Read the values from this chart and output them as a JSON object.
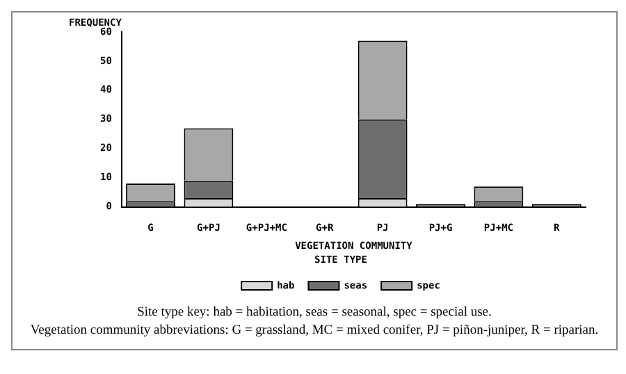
{
  "chart_data": {
    "type": "bar",
    "stacked": true,
    "ylabel": "FREQUENCY",
    "xlabel": "VEGETATION COMMUNITY",
    "legend_title": "SITE TYPE",
    "legend": "bottom",
    "grid": false,
    "categories": [
      "G",
      "G+PJ",
      "G+PJ+MC",
      "G+R",
      "PJ",
      "PJ+G",
      "PJ+MC",
      "R"
    ],
    "series": [
      {
        "name": "hab",
        "color": "#d9d9d9",
        "values": [
          0,
          3,
          0,
          0,
          3,
          0,
          0,
          0
        ]
      },
      {
        "name": "seas",
        "color": "#6e6e6e",
        "values": [
          2,
          6,
          0,
          0,
          27,
          1,
          2,
          1
        ]
      },
      {
        "name": "spec",
        "color": "#a8a8a8",
        "values": [
          6,
          18,
          0,
          0,
          27,
          0,
          5,
          0
        ]
      }
    ],
    "ylim": [
      0,
      60
    ],
    "yticks": [
      0,
      10,
      20,
      30,
      40,
      50,
      60
    ],
    "annotations": [
      "Site type key: hab = habitation, seas = seasonal, spec = special use.",
      "Vegetation community abbreviations: G = grassland, MC = mixed conifer, PJ = piñon-juniper, R = riparian."
    ]
  }
}
